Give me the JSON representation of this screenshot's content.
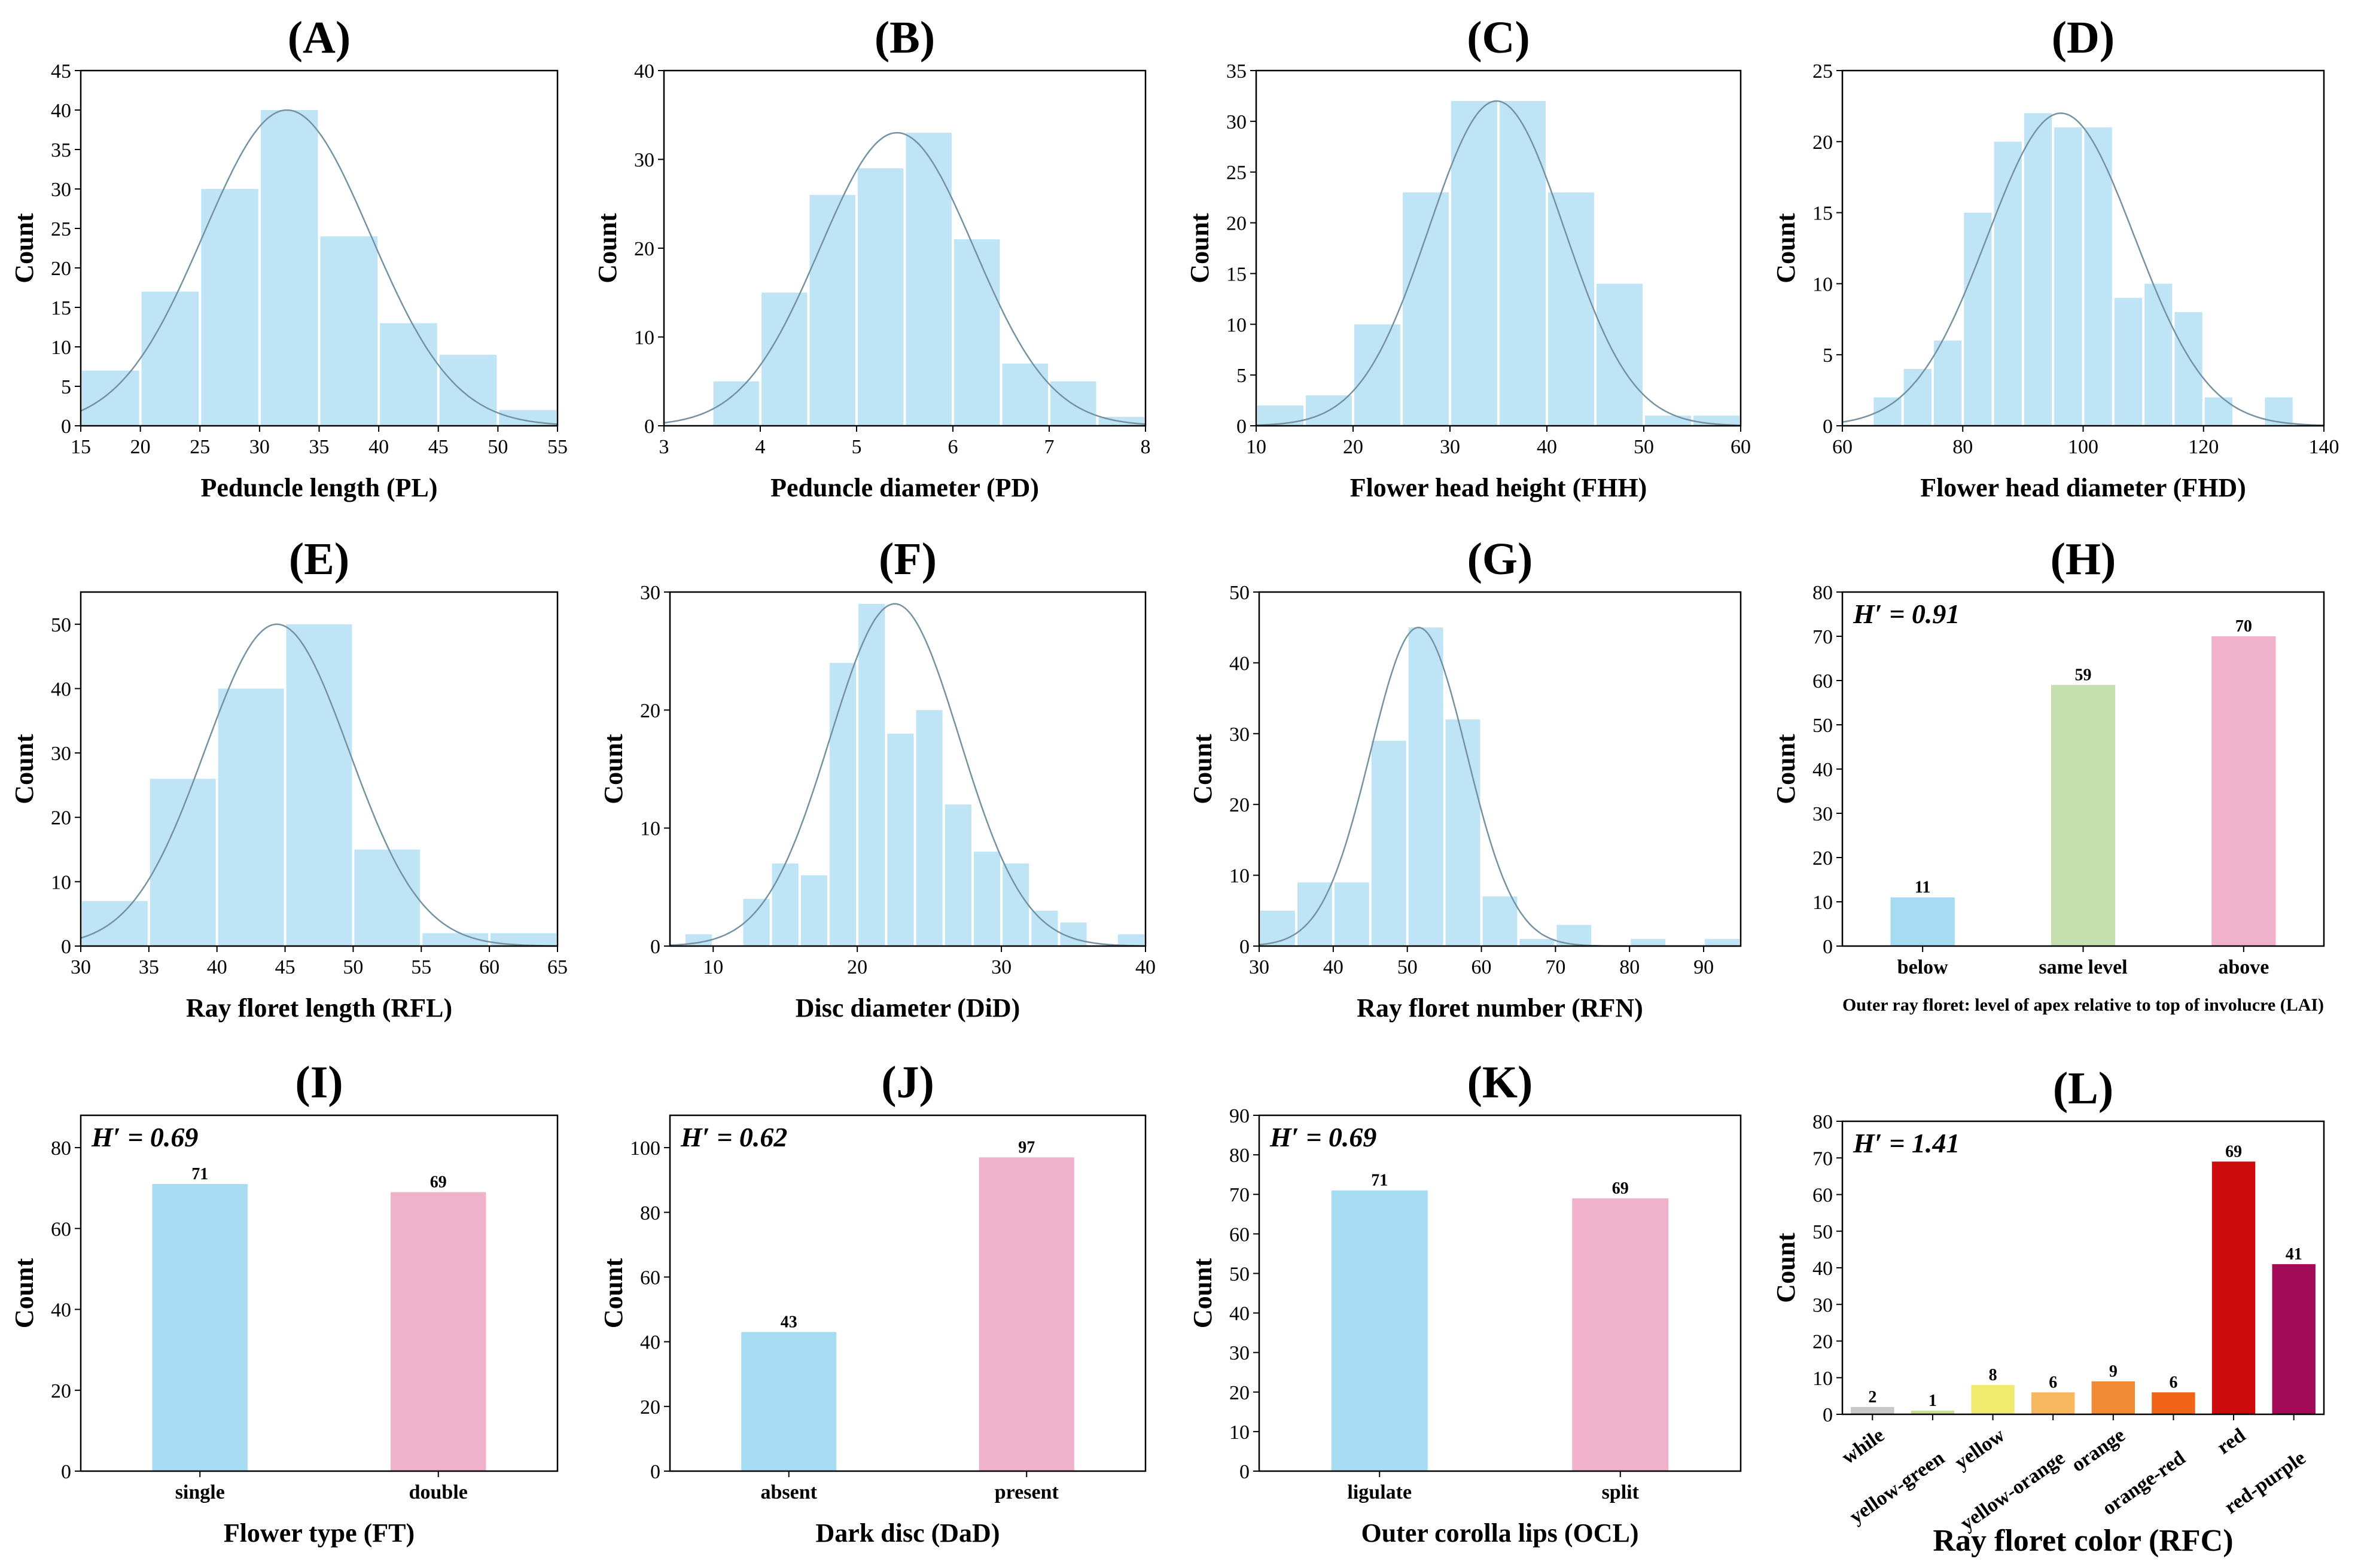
{
  "chart_data": [
    {
      "panel": "(A)",
      "type": "bar",
      "xlabel": "Peduncle length (PL)",
      "ylabel": "Count",
      "xlim": [
        15,
        55
      ],
      "ylim": [
        0,
        45
      ],
      "xticks": [
        15,
        20,
        25,
        30,
        35,
        40,
        45,
        50,
        55
      ],
      "yticks": [
        0,
        5,
        10,
        15,
        20,
        25,
        30,
        35,
        40,
        45
      ],
      "bins": [
        {
          "x0": 15,
          "x1": 20,
          "value": 7
        },
        {
          "x0": 20,
          "x1": 25,
          "value": 17
        },
        {
          "x0": 25,
          "x1": 30,
          "value": 30
        },
        {
          "x0": 30,
          "x1": 35,
          "value": 40
        },
        {
          "x0": 35,
          "x1": 40,
          "value": 24
        },
        {
          "x0": 40,
          "x1": 45,
          "value": 13
        },
        {
          "x0": 45,
          "x1": 50,
          "value": 9
        },
        {
          "x0": 50,
          "x1": 55,
          "value": 2
        }
      ],
      "curve": {
        "mean": 32.3,
        "sd": 7.0,
        "peak": 40
      }
    },
    {
      "panel": "(B)",
      "type": "bar",
      "xlabel": "Peduncle diameter (PD)",
      "ylabel": "Count",
      "xlim": [
        3,
        8
      ],
      "ylim": [
        0,
        40
      ],
      "xticks": [
        3,
        4,
        5,
        6,
        7,
        8
      ],
      "yticks": [
        0,
        10,
        20,
        30,
        40
      ],
      "bins": [
        {
          "x0": 3.5,
          "x1": 4.0,
          "value": 5
        },
        {
          "x0": 4.0,
          "x1": 4.5,
          "value": 15
        },
        {
          "x0": 4.5,
          "x1": 5.0,
          "value": 26
        },
        {
          "x0": 5.0,
          "x1": 5.5,
          "value": 29
        },
        {
          "x0": 5.5,
          "x1": 6.0,
          "value": 33
        },
        {
          "x0": 6.0,
          "x1": 6.5,
          "value": 21
        },
        {
          "x0": 6.5,
          "x1": 7.0,
          "value": 7
        },
        {
          "x0": 7.0,
          "x1": 7.5,
          "value": 5
        },
        {
          "x0": 7.5,
          "x1": 8.0,
          "value": 1
        }
      ],
      "curve": {
        "mean": 5.42,
        "sd": 0.8,
        "peak": 33
      }
    },
    {
      "panel": "(C)",
      "type": "bar",
      "xlabel": "Flower head height (FHH)",
      "ylabel": "Count",
      "xlim": [
        10,
        60
      ],
      "ylim": [
        0,
        35
      ],
      "xticks": [
        10,
        20,
        30,
        40,
        50,
        60
      ],
      "yticks": [
        0,
        5,
        10,
        15,
        20,
        25,
        30,
        35
      ],
      "bins": [
        {
          "x0": 10,
          "x1": 15,
          "value": 2
        },
        {
          "x0": 15,
          "x1": 20,
          "value": 3
        },
        {
          "x0": 20,
          "x1": 25,
          "value": 10
        },
        {
          "x0": 25,
          "x1": 30,
          "value": 23
        },
        {
          "x0": 30,
          "x1": 35,
          "value": 32
        },
        {
          "x0": 35,
          "x1": 40,
          "value": 32
        },
        {
          "x0": 40,
          "x1": 45,
          "value": 23
        },
        {
          "x0": 45,
          "x1": 50,
          "value": 14
        },
        {
          "x0": 50,
          "x1": 55,
          "value": 1
        },
        {
          "x0": 55,
          "x1": 60,
          "value": 1
        }
      ],
      "curve": {
        "mean": 34.8,
        "sd": 7.0,
        "peak": 32
      }
    },
    {
      "panel": "(D)",
      "type": "bar",
      "xlabel": "Flower head diameter (FHD)",
      "ylabel": "Count",
      "xlim": [
        60,
        140
      ],
      "ylim": [
        0,
        25
      ],
      "xticks": [
        60,
        80,
        100,
        120,
        140
      ],
      "yticks": [
        0,
        5,
        10,
        15,
        20,
        25
      ],
      "bins": [
        {
          "x0": 65,
          "x1": 70,
          "value": 2
        },
        {
          "x0": 70,
          "x1": 75,
          "value": 4
        },
        {
          "x0": 75,
          "x1": 80,
          "value": 6
        },
        {
          "x0": 80,
          "x1": 85,
          "value": 15
        },
        {
          "x0": 85,
          "x1": 90,
          "value": 20
        },
        {
          "x0": 90,
          "x1": 95,
          "value": 22
        },
        {
          "x0": 95,
          "x1": 100,
          "value": 21
        },
        {
          "x0": 100,
          "x1": 105,
          "value": 21
        },
        {
          "x0": 105,
          "x1": 110,
          "value": 9
        },
        {
          "x0": 110,
          "x1": 115,
          "value": 10
        },
        {
          "x0": 115,
          "x1": 120,
          "value": 8
        },
        {
          "x0": 120,
          "x1": 125,
          "value": 2
        },
        {
          "x0": 130,
          "x1": 135,
          "value": 2
        }
      ],
      "curve": {
        "mean": 96.3,
        "sd": 12.2,
        "peak": 22
      }
    },
    {
      "panel": "(E)",
      "type": "bar",
      "xlabel": "Ray floret length (RFL)",
      "ylabel": "Count",
      "xlim": [
        30,
        65
      ],
      "ylim": [
        0,
        55
      ],
      "xticks": [
        30,
        35,
        40,
        45,
        50,
        55,
        60,
        65
      ],
      "yticks": [
        0,
        10,
        20,
        30,
        40,
        50
      ],
      "bins": [
        {
          "x0": 30,
          "x1": 35,
          "value": 7
        },
        {
          "x0": 35,
          "x1": 40,
          "value": 26
        },
        {
          "x0": 40,
          "x1": 45,
          "value": 40
        },
        {
          "x0": 45,
          "x1": 50,
          "value": 50
        },
        {
          "x0": 50,
          "x1": 55,
          "value": 15
        },
        {
          "x0": 55,
          "x1": 60,
          "value": 2
        },
        {
          "x0": 60,
          "x1": 65,
          "value": 2
        }
      ],
      "curve": {
        "mean": 44.4,
        "sd": 5.3,
        "peak": 50
      }
    },
    {
      "panel": "(F)",
      "type": "bar",
      "xlabel": "Disc diameter (DiD)",
      "ylabel": "Count",
      "xlim": [
        7,
        40
      ],
      "ylim": [
        0,
        30
      ],
      "xticks": [
        10,
        20,
        30,
        40
      ],
      "yticks": [
        0,
        10,
        20,
        30
      ],
      "bins": [
        {
          "x0": 8,
          "x1": 10,
          "value": 1
        },
        {
          "x0": 12,
          "x1": 14,
          "value": 4
        },
        {
          "x0": 14,
          "x1": 16,
          "value": 7
        },
        {
          "x0": 16,
          "x1": 18,
          "value": 6
        },
        {
          "x0": 18,
          "x1": 20,
          "value": 24
        },
        {
          "x0": 20,
          "x1": 22,
          "value": 29
        },
        {
          "x0": 22,
          "x1": 24,
          "value": 18
        },
        {
          "x0": 24,
          "x1": 26,
          "value": 20
        },
        {
          "x0": 26,
          "x1": 28,
          "value": 12
        },
        {
          "x0": 28,
          "x1": 30,
          "value": 8
        },
        {
          "x0": 30,
          "x1": 32,
          "value": 7
        },
        {
          "x0": 32,
          "x1": 34,
          "value": 3
        },
        {
          "x0": 34,
          "x1": 36,
          "value": 2
        },
        {
          "x0": 38,
          "x1": 40,
          "value": 1
        }
      ],
      "curve": {
        "mean": 22.6,
        "sd": 4.5,
        "peak": 29
      }
    },
    {
      "panel": "(G)",
      "type": "bar",
      "xlabel": "Ray floret number (RFN)",
      "ylabel": "Count",
      "xlim": [
        30,
        95
      ],
      "ylim": [
        0,
        50
      ],
      "xticks": [
        30,
        40,
        50,
        60,
        70,
        80,
        90
      ],
      "yticks": [
        0,
        10,
        20,
        30,
        40,
        50
      ],
      "bins": [
        {
          "x0": 30,
          "x1": 35,
          "value": 5
        },
        {
          "x0": 35,
          "x1": 40,
          "value": 9
        },
        {
          "x0": 40,
          "x1": 45,
          "value": 9
        },
        {
          "x0": 45,
          "x1": 50,
          "value": 29
        },
        {
          "x0": 50,
          "x1": 55,
          "value": 45
        },
        {
          "x0": 55,
          "x1": 60,
          "value": 32
        },
        {
          "x0": 60,
          "x1": 65,
          "value": 7
        },
        {
          "x0": 65,
          "x1": 70,
          "value": 1
        },
        {
          "x0": 70,
          "x1": 75,
          "value": 3
        },
        {
          "x0": 80,
          "x1": 85,
          "value": 1
        },
        {
          "x0": 90,
          "x1": 95,
          "value": 1
        }
      ],
      "curve": {
        "mean": 51.5,
        "sd": 6.5,
        "peak": 45
      }
    },
    {
      "panel": "(H)",
      "type": "bar",
      "xlabel": "Outer ray floret: level of apex relative to top of involucre (LAI)",
      "ylabel": "Count",
      "ylim": [
        0,
        80
      ],
      "yticks": [
        0,
        10,
        20,
        30,
        40,
        50,
        60,
        70,
        80
      ],
      "hprime": "H′ = 0.91",
      "categories": [
        "below",
        "same level",
        "above"
      ],
      "values": [
        11,
        59,
        70
      ],
      "colors": [
        "#a6dcf2",
        "#c5dfae",
        "#f0b1cb"
      ]
    },
    {
      "panel": "(I)",
      "type": "bar",
      "xlabel": "Flower type (FT)",
      "ylabel": "Count",
      "ylim": [
        0,
        88
      ],
      "yticks": [
        0,
        20,
        40,
        60,
        80
      ],
      "hprime": "H′ = 0.69",
      "categories": [
        "single",
        "double"
      ],
      "values": [
        71,
        69
      ],
      "colors": [
        "#a6dcf2",
        "#f0b1cb"
      ]
    },
    {
      "panel": "(J)",
      "type": "bar",
      "xlabel": "Dark disc (DaD)",
      "ylabel": "Count",
      "ylim": [
        0,
        110
      ],
      "yticks": [
        0,
        20,
        40,
        60,
        80,
        100
      ],
      "hprime": "H′ = 0.62",
      "categories": [
        "absent",
        "present"
      ],
      "values": [
        43,
        97
      ],
      "colors": [
        "#a6dcf2",
        "#f0b1cb"
      ]
    },
    {
      "panel": "(K)",
      "type": "bar",
      "xlabel": "Outer corolla lips (OCL)",
      "ylabel": "Count",
      "ylim": [
        0,
        90
      ],
      "yticks": [
        0,
        10,
        20,
        30,
        40,
        50,
        60,
        70,
        80,
        90
      ],
      "hprime": "H′ = 0.69",
      "categories": [
        "ligulate",
        "split"
      ],
      "values": [
        71,
        69
      ],
      "colors": [
        "#a6dcf2",
        "#f0b1cb"
      ]
    },
    {
      "panel": "(L)",
      "type": "bar",
      "xlabel": "Ray floret color (RFC)",
      "ylabel": "Count",
      "ylim": [
        0,
        80
      ],
      "yticks": [
        0,
        10,
        20,
        30,
        40,
        50,
        60,
        70,
        80
      ],
      "hprime": "H′ = 1.41",
      "categories": [
        "while",
        "yellow-green",
        "yellow",
        "yellow-orange",
        "orange",
        "orange-red",
        "red",
        "red-purple"
      ],
      "values": [
        2,
        1,
        8,
        6,
        9,
        6,
        69,
        41
      ],
      "colors": [
        "#c8c8c8",
        "#c9e08a",
        "#f0eb6e",
        "#f7b860",
        "#f08a34",
        "#f06418",
        "#cc0c0c",
        "#a30a57"
      ]
    }
  ]
}
